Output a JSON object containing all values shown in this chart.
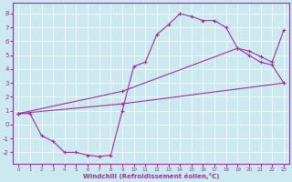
{
  "xlabel": "Windchill (Refroidissement éolien,°C)",
  "xlim": [
    -0.5,
    23.5
  ],
  "ylim": [
    -2.8,
    8.8
  ],
  "yticks": [
    -2,
    -1,
    0,
    1,
    2,
    3,
    4,
    5,
    6,
    7,
    8
  ],
  "xticks": [
    0,
    1,
    2,
    3,
    4,
    5,
    6,
    7,
    8,
    9,
    10,
    11,
    12,
    13,
    14,
    15,
    16,
    17,
    18,
    19,
    20,
    21,
    22,
    23
  ],
  "bg_color": "#cce8f0",
  "line_color": "#993399",
  "line1_x": [
    0,
    1,
    2,
    3,
    4,
    5,
    6,
    7,
    8,
    9,
    10,
    11,
    12,
    13,
    14,
    15,
    16,
    17,
    18,
    19,
    20,
    21,
    22,
    23
  ],
  "line1_y": [
    0.8,
    0.8,
    -0.8,
    -1.2,
    -2.0,
    -2.0,
    -2.2,
    -2.3,
    -2.2,
    1.0,
    4.2,
    4.5,
    6.5,
    7.2,
    8.0,
    7.8,
    7.5,
    7.5,
    7.0,
    5.5,
    5.0,
    4.5,
    4.3,
    3.0
  ],
  "line2_x": [
    0,
    9,
    23
  ],
  "line2_y": [
    0.8,
    1.5,
    3.0
  ],
  "line3_x": [
    0,
    9,
    19,
    20,
    21,
    22,
    23
  ],
  "line3_y": [
    0.8,
    2.4,
    5.5,
    5.3,
    4.9,
    4.5,
    6.8
  ]
}
